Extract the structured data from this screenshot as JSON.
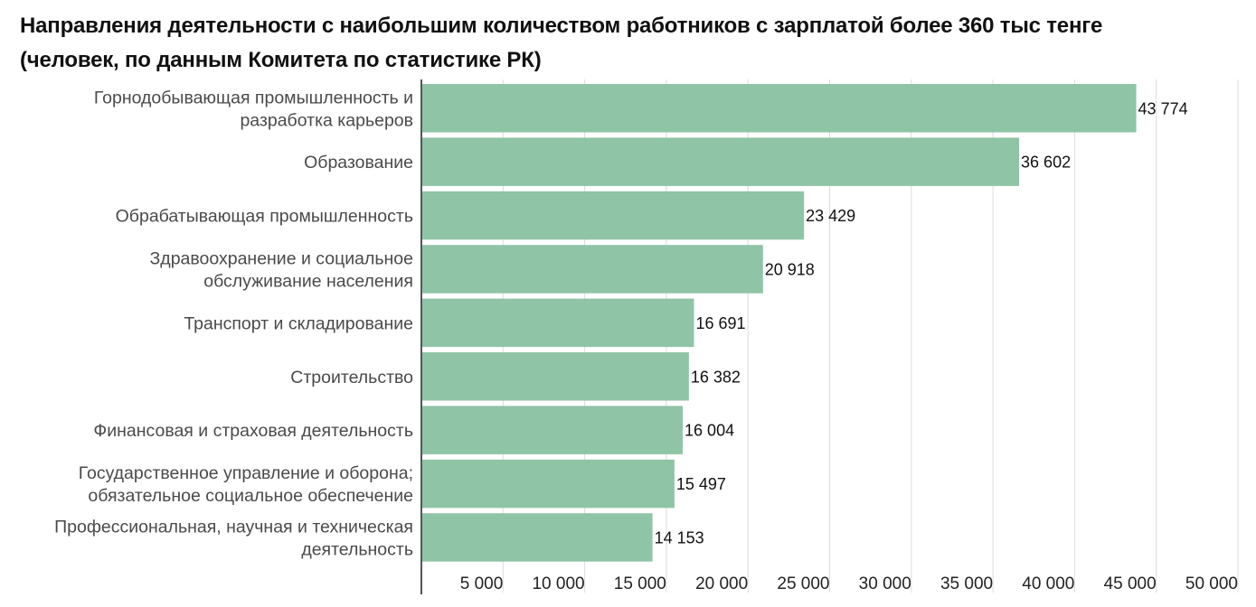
{
  "chart_data": {
    "type": "bar",
    "orientation": "horizontal",
    "title_lines": [
      "Направления деятельности с наибольшим количеством работников с зарплатой более 360 тыс тенге",
      "(человек, по данным Комитета по статистике РК)"
    ],
    "categories": [
      [
        "Горнодобывающая промышленность и",
        "разработка карьеров"
      ],
      [
        "Образование"
      ],
      [
        "Обрабатывающая промышленность"
      ],
      [
        "Здравоохранение и социальное",
        "обслуживание населения"
      ],
      [
        "Транспорт и складирование"
      ],
      [
        "Строительство"
      ],
      [
        "Финансовая и страховая деятельность"
      ],
      [
        "Государственное управление и оборона;",
        "обязательное социальное обеспечение"
      ],
      [
        "Профессиональная, научная и техническая",
        "деятельность"
      ]
    ],
    "values": [
      43774,
      36602,
      23429,
      20918,
      16691,
      16382,
      16004,
      15497,
      14153
    ],
    "value_labels": [
      "43 774",
      "36 602",
      "23 429",
      "20 918",
      "16 691",
      "16 382",
      "16 004",
      "15 497",
      "14 153"
    ],
    "xlim": [
      0,
      50000
    ],
    "x_ticks": [
      5000,
      10000,
      15000,
      20000,
      25000,
      30000,
      35000,
      40000,
      45000,
      50000
    ],
    "x_tick_labels": [
      "5 000",
      "10 000",
      "15 000",
      "20 000",
      "25 000",
      "30 000",
      "35 000",
      "40 000",
      "45 000",
      "50 000"
    ],
    "xlabel": "",
    "ylabel": "",
    "grid": true,
    "legend": "none",
    "bar_color": "#8fc4a6",
    "grid_color": "#dcdcdc",
    "axis_color": "#555555"
  }
}
